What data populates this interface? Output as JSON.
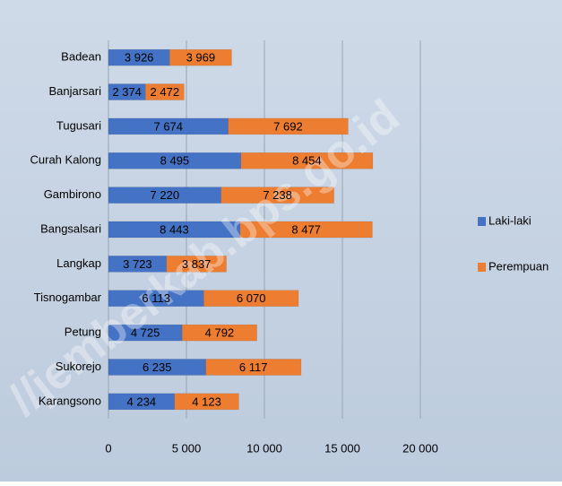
{
  "chart_data": {
    "type": "stacked-bar-horizontal",
    "watermark": "//jemberkab.bps.go.id",
    "categories": [
      "Badean",
      "Banjarsari",
      "Tugusari",
      "Curah Kalong",
      "Gambirono",
      "Bangsalsari",
      "Langkap",
      "Tisnogambar",
      "Petung",
      "Sukorejo",
      "Karangsono"
    ],
    "series": [
      {
        "name": "Laki-laki",
        "color": "#4472c4",
        "values": [
          3926,
          2374,
          7674,
          8495,
          7220,
          8443,
          3723,
          6113,
          4725,
          6235,
          4234
        ],
        "value_labels": [
          "3 926",
          "2 374",
          "7 674",
          "8 495",
          "7 220",
          "8 443",
          "3 723",
          "6 113",
          "4 725",
          "6 235",
          "4 234"
        ]
      },
      {
        "name": "Perempuan",
        "color": "#ed7d31",
        "values": [
          3969,
          2472,
          7692,
          8454,
          7238,
          8477,
          3837,
          6070,
          4792,
          6117,
          4123
        ],
        "value_labels": [
          "3 969",
          "2 472",
          "7 692",
          "8 454",
          "7 238",
          "8 477",
          "3 837",
          "6 070",
          "4 792",
          "6 117",
          "4 123"
        ]
      }
    ],
    "xlim": [
      0,
      20000
    ],
    "xticks": [
      0,
      {
        "value": 5000,
        "label": "5 000"
      },
      {
        "value": 10000,
        "label": "10 000"
      },
      {
        "value": 15000,
        "label": "15 000"
      },
      {
        "value": 20000,
        "label": "20 000"
      }
    ],
    "grid": true,
    "legend": "right"
  }
}
